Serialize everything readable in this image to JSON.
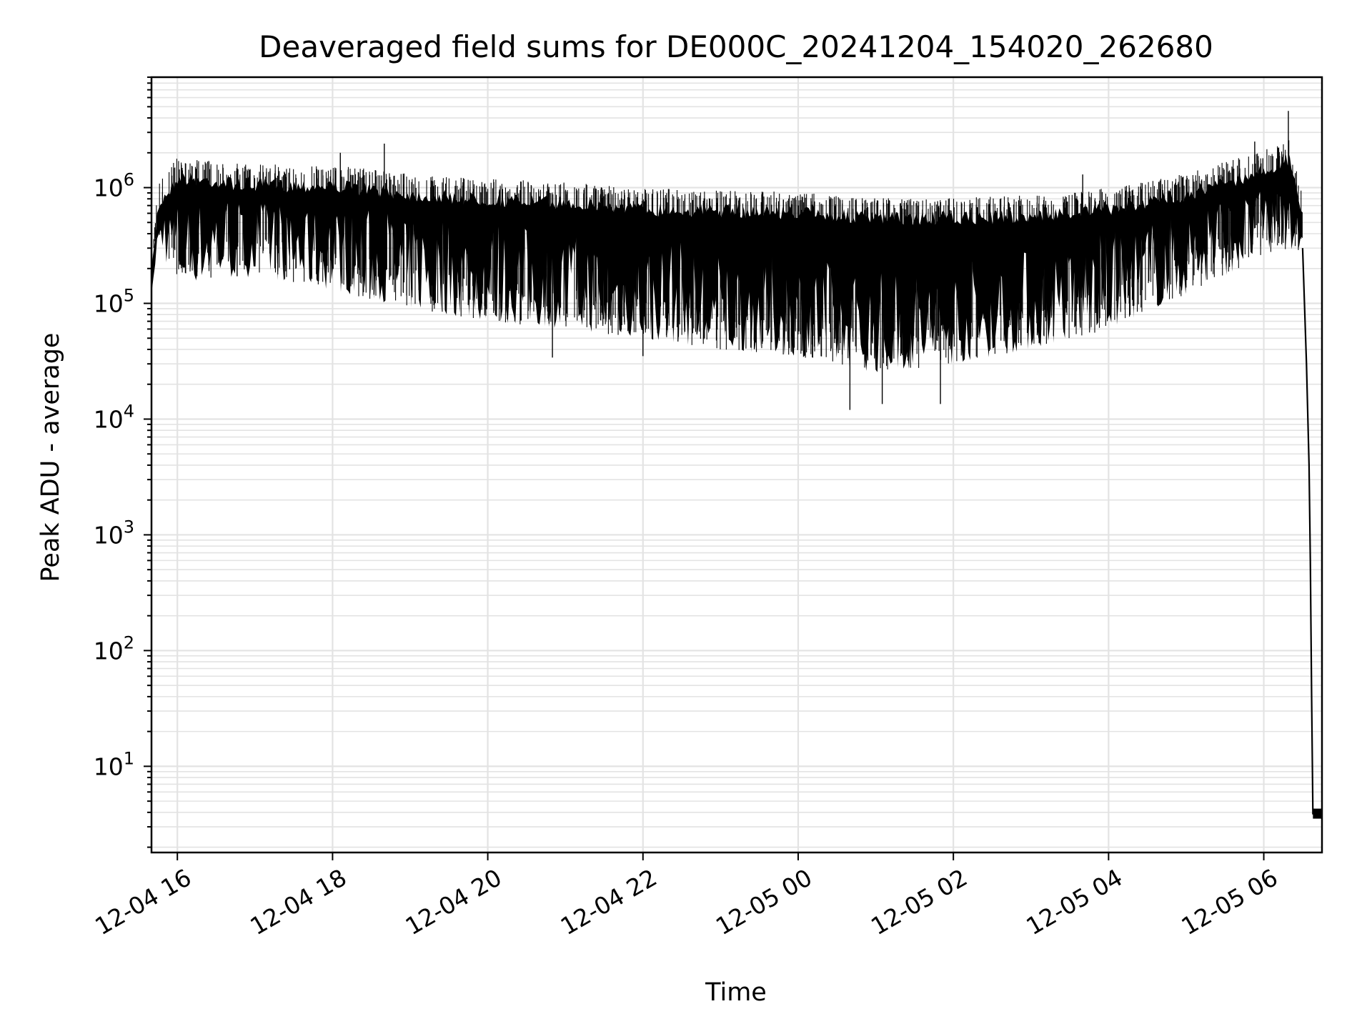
{
  "chart_data": {
    "type": "line",
    "title": "Deaveraged field sums for DE000C_20241204_154020_262680",
    "xlabel": "Time",
    "ylabel": "Peak ADU - average",
    "yscale": "log",
    "ylim": [
      1.8,
      9000000
    ],
    "xlim": [
      "2024-12-04 15:40",
      "2024-12-05 06:45"
    ],
    "grid": true,
    "x_tick_labels": [
      "12-04 16",
      "12-04 18",
      "12-04 20",
      "12-04 22",
      "12-05 00",
      "12-05 02",
      "12-05 04",
      "12-05 06"
    ],
    "y_tick_labels": [
      {
        "base": "10",
        "exp": "1"
      },
      {
        "base": "10",
        "exp": "2"
      },
      {
        "base": "10",
        "exp": "3"
      },
      {
        "base": "10",
        "exp": "4"
      },
      {
        "base": "10",
        "exp": "5"
      },
      {
        "base": "10",
        "exp": "6"
      }
    ],
    "series": [
      {
        "color": "#000000",
        "envelope": {
          "x": [
            "2024-12-04 15:40",
            "2024-12-04 15:45",
            "2024-12-04 16:00",
            "2024-12-04 17:00",
            "2024-12-04 18:00",
            "2024-12-04 19:00",
            "2024-12-04 20:00",
            "2024-12-04 21:00",
            "2024-12-04 22:00",
            "2024-12-04 23:00",
            "2024-12-05 00:00",
            "2024-12-05 01:00",
            "2024-12-05 02:00",
            "2024-12-05 03:00",
            "2024-12-05 04:00",
            "2024-12-05 05:00",
            "2024-12-05 06:00",
            "2024-12-05 06:20",
            "2024-12-05 06:30"
          ],
          "upper": [
            200000,
            800000,
            1400000,
            1200000,
            1200000,
            1000000,
            900000,
            850000,
            750000,
            720000,
            700000,
            620000,
            620000,
            650000,
            750000,
            1000000,
            1600000,
            2000000,
            700000
          ],
          "lower": [
            180000,
            300000,
            150000,
            170000,
            130000,
            90000,
            70000,
            60000,
            50000,
            40000,
            35000,
            25000,
            30000,
            40000,
            60000,
            120000,
            250000,
            300000,
            250000
          ]
        },
        "spikes_up": [
          {
            "x": "2024-12-04 18:40",
            "y": 2400000
          },
          {
            "x": "2024-12-04 18:06",
            "y": 2000000
          },
          {
            "x": "2024-12-05 06:19",
            "y": 4600000
          },
          {
            "x": "2024-12-05 05:53",
            "y": 2500000
          },
          {
            "x": "2024-12-05 03:40",
            "y": 1300000
          }
        ],
        "spikes_down": [
          {
            "x": "2024-12-05 00:40",
            "y": 12000
          },
          {
            "x": "2024-12-05 01:50",
            "y": 13500
          },
          {
            "x": "2024-12-05 01:05",
            "y": 13500
          },
          {
            "x": "2024-12-04 22:00",
            "y": 35000
          },
          {
            "x": "2024-12-04 20:50",
            "y": 34000
          }
        ],
        "tail": {
          "x": [
            "2024-12-05 06:30",
            "2024-12-05 06:33",
            "2024-12-05 06:35",
            "2024-12-05 06:36",
            "2024-12-05 06:37",
            "2024-12-05 06:38",
            "2024-12-05 06:45"
          ],
          "y": [
            300000,
            30000,
            4000,
            600,
            40,
            3.9,
            3.9
          ]
        }
      }
    ]
  }
}
